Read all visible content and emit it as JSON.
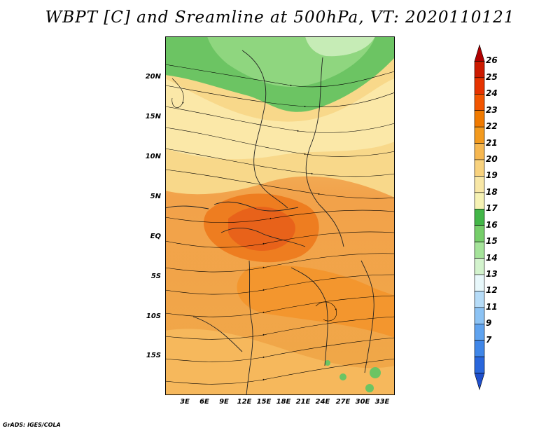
{
  "title": "WBPT [C] and Sreamline at 500hPa, VT: 2020110121",
  "footer": "GrADS: IGES/COLA",
  "map": {
    "lat_labels": [
      "20N",
      "15N",
      "10N",
      "5N",
      "EQ",
      "5S",
      "10S",
      "15S"
    ],
    "lon_labels": [
      "3E",
      "6E",
      "9E",
      "12E",
      "15E",
      "18E",
      "21E",
      "24E",
      "27E",
      "30E",
      "33E"
    ]
  },
  "colorbar": {
    "levels": [
      "26",
      "25",
      "24",
      "23",
      "22",
      "21",
      "20",
      "19",
      "18",
      "17",
      "16",
      "15",
      "14",
      "13",
      "12",
      "11",
      "9",
      "7"
    ],
    "colors": [
      "#b00000",
      "#cc1a00",
      "#e63300",
      "#f25500",
      "#f07a00",
      "#f39a1e",
      "#f6b750",
      "#f8d27e",
      "#f8e7a6",
      "#f6f2b4",
      "#43b648",
      "#76ce6a",
      "#a5e39a",
      "#d3f3cd",
      "#e8f8fb",
      "#b6dcf8",
      "#8cc3f4",
      "#5fa3ef",
      "#3f86e8",
      "#2966dc",
      "#1f4fcc"
    ]
  }
}
